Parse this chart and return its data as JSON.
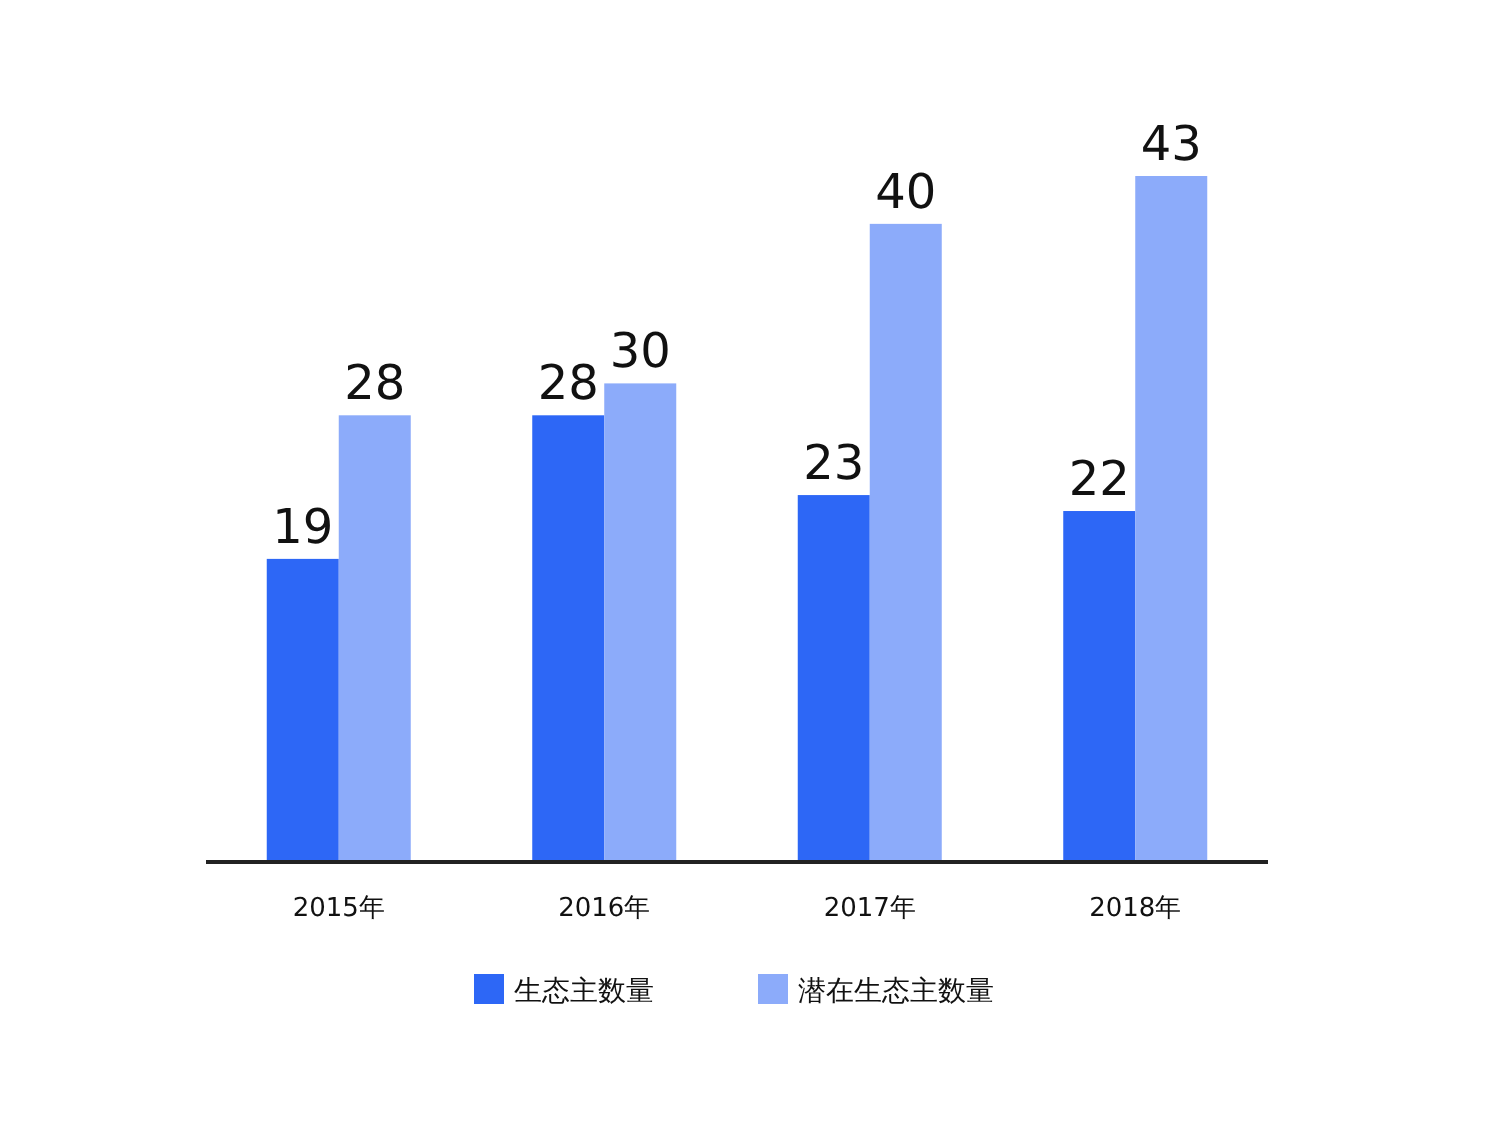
{
  "chart_data": {
    "type": "bar",
    "categories": [
      "2015年",
      "2016年",
      "2017年",
      "2018年"
    ],
    "series": [
      {
        "name": "生态主数量",
        "color": "#2d67f6",
        "values": [
          19,
          28,
          23,
          22
        ]
      },
      {
        "name": "潜在生态主数量",
        "color": "#8cabfa",
        "values": [
          28,
          30,
          40,
          43
        ]
      }
    ],
    "data_labels": true,
    "legend": "bottom"
  }
}
